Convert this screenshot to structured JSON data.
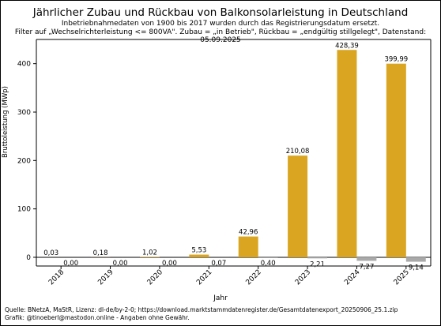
{
  "chart_data": {
    "type": "bar",
    "title": "Jährlicher Zubau und Rückbau von Balkonsolarleistung in Deutschland",
    "subtitle_lines": [
      "Inbetriebnahmedaten von 1900 bis 2017 wurden durch das Registrierungsdatum ersetzt.",
      "Filter auf „Wechselrichterleistung <= 800VA\". Zubau = „in Betrieb\", Rückbau = „endgültig stillgelegt\", Datenstand: 05.09.2025"
    ],
    "xlabel": "Jahr",
    "ylabel": "Bruttoleistung (MWp)",
    "categories": [
      "2018",
      "2019",
      "2020",
      "2021",
      "2022",
      "2023",
      "2024",
      "2025"
    ],
    "ylim": [
      -18,
      450
    ],
    "yticks": [
      0,
      100,
      200,
      300,
      400
    ],
    "series": [
      {
        "role": "zubau",
        "color": "#DAA520",
        "values": [
          0.03,
          0.18,
          1.02,
          5.53,
          42.96,
          210.08,
          428.39,
          399.99
        ],
        "labels": [
          "0,03",
          "0,18",
          "1,02",
          "5,53",
          "42,96",
          "210,08",
          "428,39",
          "399,99"
        ]
      },
      {
        "role": "rueckbau",
        "color": "#A9A9A9",
        "values": [
          0.0,
          0.0,
          0.0,
          -0.07,
          -0.4,
          -2.21,
          -7.27,
          -9.14
        ],
        "labels": [
          "0,00",
          "0,00",
          "0,00",
          "0,07",
          "0,40",
          "2,21",
          "7,27",
          "9,14"
        ]
      }
    ],
    "grid": false,
    "legend": "none"
  },
  "footer": {
    "line1": "Quelle: BNetzA, MaStR, Lizenz: dl-de/by-2-0; https://download.marktstammdatenregister.de/Gesamtdatenexport_20250906_25.1.zip",
    "line2": "Grafik: @tinoeberl@mastodon.online - Angaben ohne Gewähr."
  }
}
